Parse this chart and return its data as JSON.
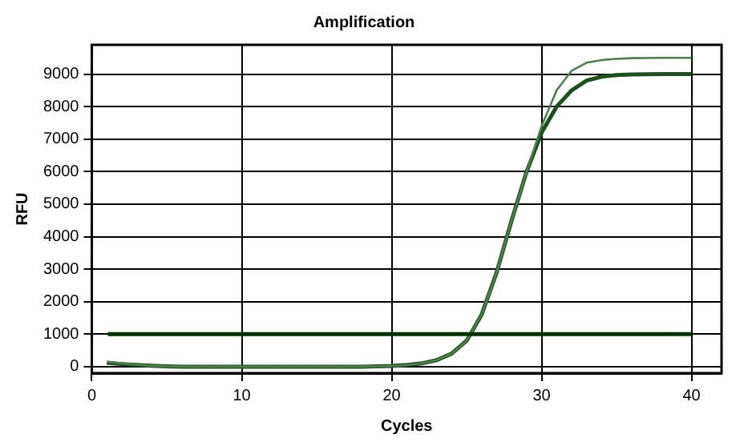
{
  "chart_data": {
    "type": "line",
    "title": "Amplification",
    "xlabel": "Cycles",
    "ylabel": "RFU",
    "x": [
      1,
      2,
      3,
      4,
      5,
      6,
      8,
      10,
      12,
      14,
      16,
      18,
      20,
      21,
      22,
      23,
      24,
      25,
      26,
      27,
      28,
      29,
      30,
      31,
      32,
      33,
      34,
      35,
      36,
      38,
      40
    ],
    "series": [
      {
        "color": "#4f7f4f",
        "values": [
          150,
          100,
          60,
          30,
          10,
          0,
          0,
          0,
          0,
          0,
          0,
          0,
          20,
          50,
          100,
          200,
          400,
          800,
          1600,
          2900,
          4500,
          6000,
          7400,
          8500,
          9100,
          9350,
          9430,
          9470,
          9490,
          9500,
          9500
        ]
      },
      {
        "color": "#1f4f1f",
        "values": [
          120,
          80,
          50,
          30,
          10,
          0,
          0,
          0,
          0,
          0,
          0,
          0,
          20,
          50,
          100,
          200,
          400,
          800,
          1600,
          2900,
          4500,
          6000,
          7200,
          8000,
          8500,
          8800,
          8920,
          8970,
          8990,
          9000,
          9000
        ]
      }
    ],
    "ref_lines": [
      {
        "axis": "y",
        "value": 1000,
        "color": "#003300"
      }
    ],
    "xlim": [
      0,
      42
    ],
    "xticks": [
      0,
      10,
      20,
      30,
      40
    ],
    "ylim": [
      -200,
      9900
    ],
    "yticks": [
      0,
      1000,
      2000,
      3000,
      4000,
      5000,
      6000,
      7000,
      8000,
      9000
    ],
    "grid": true,
    "legend": false,
    "marker": "none",
    "line_style": "solid"
  }
}
